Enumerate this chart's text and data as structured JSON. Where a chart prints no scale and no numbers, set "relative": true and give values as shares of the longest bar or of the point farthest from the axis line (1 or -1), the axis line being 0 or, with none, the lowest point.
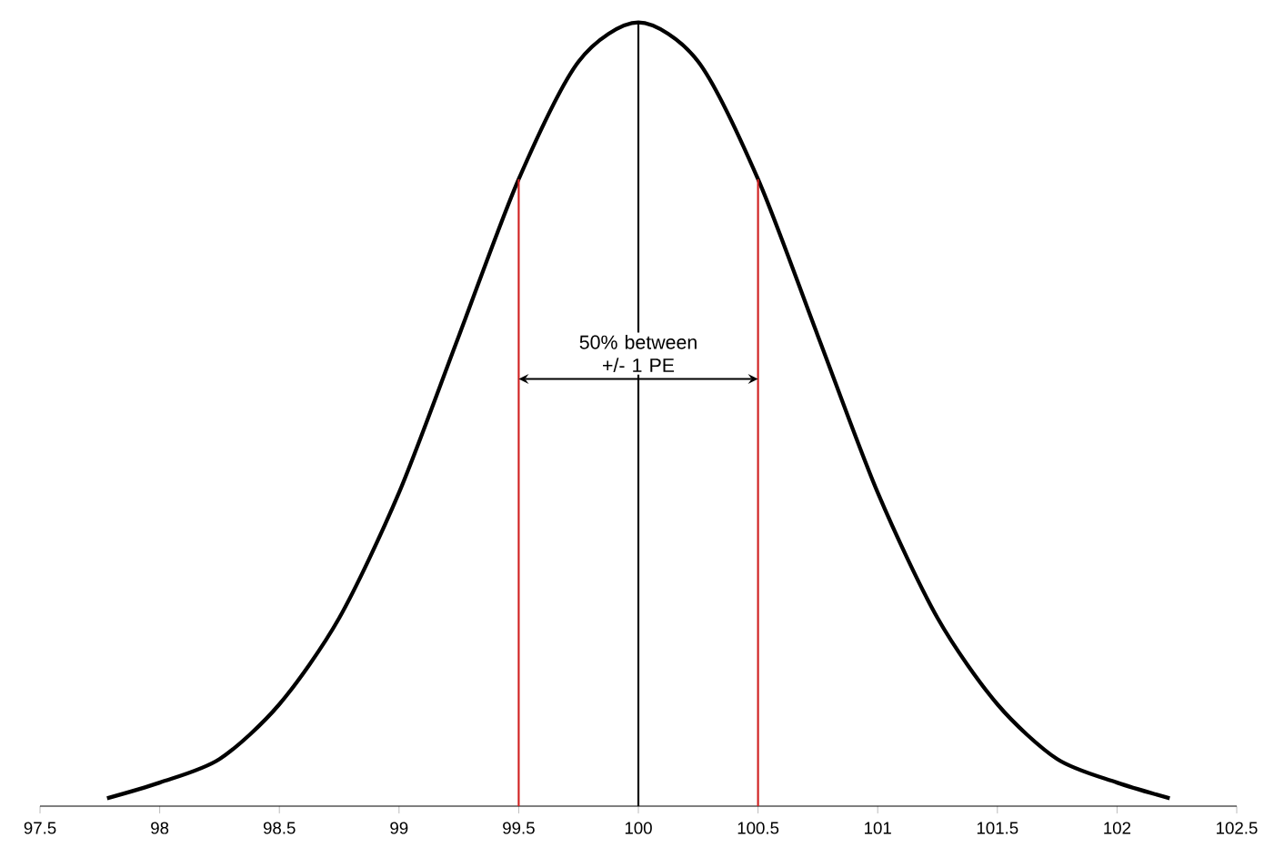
{
  "chart_data": {
    "type": "line",
    "relative": true,
    "x": [
      97.78,
      98.0,
      98.25,
      98.5,
      98.75,
      99.0,
      99.25,
      99.5,
      99.75,
      100.0,
      100.25,
      100.5,
      100.75,
      101.0,
      101.25,
      101.5,
      101.75,
      102.0,
      102.22
    ],
    "series": [
      {
        "color": "#000000",
        "values": [
          0.01,
          0.03,
          0.06,
          0.13,
          0.24,
          0.4,
          0.6,
          0.8,
          0.95,
          1.0,
          0.95,
          0.8,
          0.6,
          0.4,
          0.24,
          0.13,
          0.06,
          0.03,
          0.01
        ]
      }
    ],
    "xlim": [
      97.5,
      102.5
    ],
    "xticks": [
      97.5,
      98,
      98.5,
      99,
      99.5,
      100,
      100.5,
      101,
      101.5,
      102,
      102.5
    ],
    "ref_lines": [
      {
        "axis": "x",
        "value": 99.5,
        "color": "#d02020"
      },
      {
        "axis": "x",
        "value": 100,
        "color": "#000000"
      },
      {
        "axis": "x",
        "value": 100.5,
        "color": "#d02020"
      }
    ],
    "annotations": [
      "50% between +/- 1 PE"
    ],
    "grid": false,
    "marker": "none",
    "line_style": "solid"
  }
}
